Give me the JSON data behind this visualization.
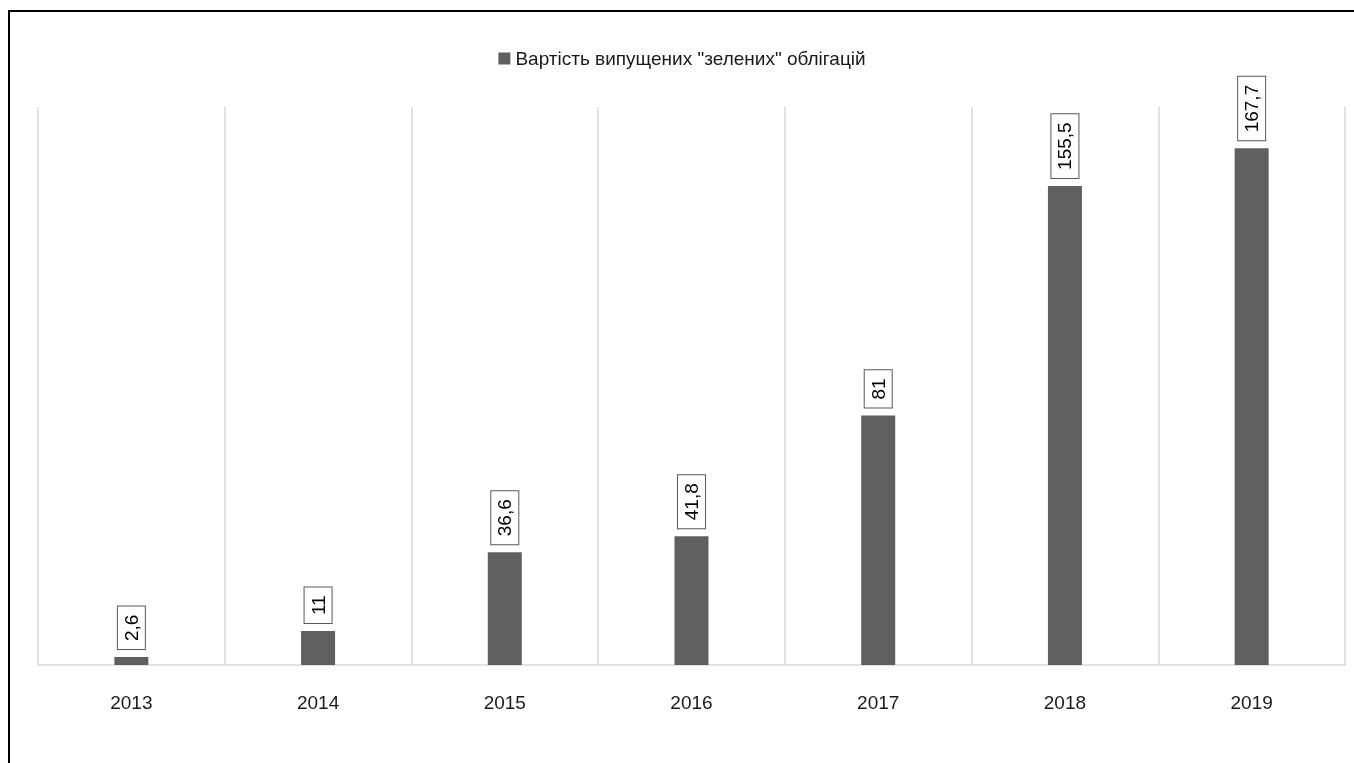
{
  "chart_data": {
    "type": "bar",
    "legend": "top",
    "grid": "x",
    "categories": [
      "2013",
      "2014",
      "2015",
      "2016",
      "2017",
      "2018",
      "2019"
    ],
    "series": [
      {
        "name": "Вартість випущених \"зелених\" облігацій",
        "color": "#5f5f5f",
        "values": [
          2.6,
          11,
          36.6,
          41.8,
          81,
          155.5,
          167.7
        ],
        "value_labels": [
          "2,6",
          "11",
          "36,6",
          "41,8",
          "81",
          "155,5",
          "167,7"
        ]
      }
    ]
  }
}
